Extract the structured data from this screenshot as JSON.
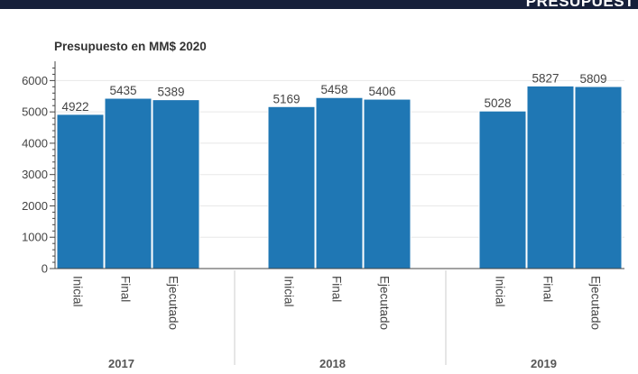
{
  "header": {
    "title": "PRESUPUEST"
  },
  "chart_data": {
    "type": "bar",
    "title": "Presupuesto en MM$ 2020",
    "xlabel": "",
    "ylabel": "",
    "ylim": [
      0,
      6500
    ],
    "yticks": [
      0,
      1000,
      2000,
      3000,
      4000,
      5000,
      6000
    ],
    "groups": [
      "2017",
      "2018",
      "2019"
    ],
    "categories": [
      "Inicial",
      "Final",
      "Ejecutado"
    ],
    "values": [
      [
        4922,
        5435,
        5389
      ],
      [
        5169,
        5458,
        5406
      ],
      [
        5028,
        5827,
        5809
      ]
    ],
    "bar_color": "#1f77b4",
    "grid": true
  }
}
